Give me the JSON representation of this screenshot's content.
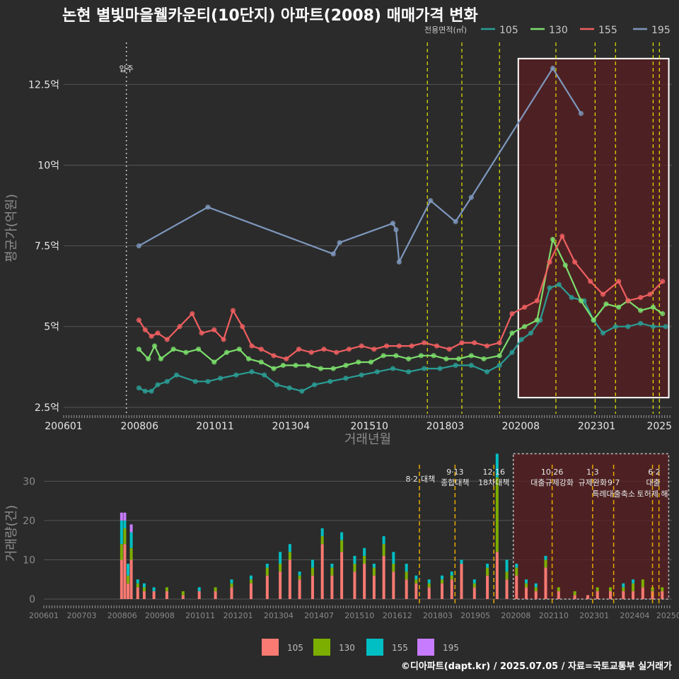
{
  "title": "논현 별빛마을웰카운티(10단지) 아파트(2008) 매매가격 변화",
  "footer": "©디아파트(dapt.kr) / 2025.07.05 / 자료=국토교통부 실거래가",
  "colors": {
    "background": "#2b2b2b",
    "grid": "#555555",
    "area105": "#2a9d95",
    "line130": "#7cde6c",
    "line155": "#f05f60",
    "line195": "#7e97bd",
    "vline": "#e6e600",
    "bar105": "#f87a72",
    "bar130": "#7cae00",
    "bar155": "#00bfc4",
    "bar195": "#c77cff",
    "highlight": "#5a1f22"
  },
  "chart_data": [
    {
      "type": "line",
      "name": "price",
      "title": "논현 별빛마을웰카운티(10단지) 아파트(2008) 매매가격 변화",
      "xlabel": "거래년월",
      "ylabel": "평균가(억원)",
      "legend_title": "전용면적(㎡)",
      "legend_position": "top-right",
      "x_ticks": [
        "200601",
        "200806",
        "201011",
        "201304",
        "201510",
        "201803",
        "202008",
        "202301",
        "2025"
      ],
      "y_ticks": [
        "2.5억",
        "5억",
        "7.5억",
        "10억",
        "12.5억"
      ],
      "ylim": [
        2.3,
        13.8
      ],
      "xlim": [
        2006.0,
        2025.4
      ],
      "move_in": {
        "label": "입주",
        "x": 2008.0
      },
      "policy_lines": [
        2017.6,
        2018.7,
        2019.9,
        2021.7,
        2022.95,
        2023.6,
        2024.8,
        2025.0
      ],
      "highlight_range": {
        "x": [
          2020.5,
          2025.3
        ],
        "y": [
          2.8,
          13.3
        ]
      },
      "series": [
        {
          "name": "105",
          "color": "#2a9d95",
          "x": [
            2008.4,
            2008.6,
            2008.8,
            2009.0,
            2009.3,
            2009.6,
            2010.2,
            2010.6,
            2011.0,
            2011.5,
            2012.0,
            2012.4,
            2012.8,
            2013.2,
            2013.6,
            2014.0,
            2014.5,
            2015.0,
            2015.5,
            2016.0,
            2016.5,
            2017.0,
            2017.5,
            2018.0,
            2018.5,
            2019.0,
            2019.5,
            2019.9,
            2020.3,
            2020.6,
            2020.9,
            2021.2,
            2021.5,
            2021.8,
            2022.2,
            2022.6,
            2022.9,
            2023.2,
            2023.6,
            2024.0,
            2024.4,
            2024.8,
            2025.2
          ],
          "y": [
            3.1,
            3.0,
            3.0,
            3.2,
            3.3,
            3.5,
            3.3,
            3.3,
            3.4,
            3.5,
            3.6,
            3.5,
            3.2,
            3.1,
            3.0,
            3.2,
            3.3,
            3.4,
            3.5,
            3.6,
            3.7,
            3.6,
            3.7,
            3.7,
            3.8,
            3.8,
            3.6,
            3.8,
            4.2,
            4.6,
            4.8,
            5.2,
            6.2,
            6.3,
            5.9,
            5.8,
            5.2,
            4.8,
            5.0,
            5.0,
            5.1,
            5.0,
            5.0
          ]
        },
        {
          "name": "130",
          "color": "#7cde6c",
          "x": [
            2008.4,
            2008.7,
            2008.9,
            2009.1,
            2009.5,
            2009.9,
            2010.3,
            2010.8,
            2011.2,
            2011.6,
            2011.9,
            2012.3,
            2012.7,
            2013.0,
            2013.4,
            2013.8,
            2014.2,
            2014.6,
            2015.0,
            2015.4,
            2015.8,
            2016.2,
            2016.6,
            2017.0,
            2017.4,
            2017.8,
            2018.2,
            2018.6,
            2019.0,
            2019.4,
            2019.9,
            2020.3,
            2020.7,
            2021.1,
            2021.6,
            2022.0,
            2022.5,
            2022.9,
            2023.3,
            2023.7,
            2024.0,
            2024.4,
            2024.8,
            2025.1
          ],
          "y": [
            4.3,
            4.0,
            4.4,
            4.0,
            4.3,
            4.2,
            4.3,
            3.9,
            4.2,
            4.3,
            4.0,
            3.9,
            3.7,
            3.8,
            3.8,
            3.8,
            3.7,
            3.7,
            3.8,
            3.9,
            3.9,
            4.1,
            4.1,
            4.0,
            4.1,
            4.1,
            4.0,
            4.0,
            4.1,
            4.0,
            4.1,
            4.8,
            5.0,
            5.2,
            7.7,
            6.9,
            5.8,
            5.2,
            5.7,
            5.6,
            5.8,
            5.5,
            5.6,
            5.4
          ]
        },
        {
          "name": "155",
          "color": "#f05f60",
          "x": [
            2008.4,
            2008.6,
            2008.8,
            2009.0,
            2009.3,
            2009.7,
            2010.1,
            2010.4,
            2010.8,
            2011.1,
            2011.4,
            2011.7,
            2012.0,
            2012.3,
            2012.7,
            2013.1,
            2013.5,
            2013.9,
            2014.3,
            2014.7,
            2015.1,
            2015.5,
            2015.9,
            2016.3,
            2016.7,
            2017.1,
            2017.5,
            2017.9,
            2018.3,
            2018.7,
            2019.1,
            2019.5,
            2019.9,
            2020.3,
            2020.7,
            2021.1,
            2021.5,
            2021.9,
            2022.3,
            2022.8,
            2023.2,
            2023.7,
            2024.0,
            2024.4,
            2024.7,
            2025.1
          ],
          "y": [
            5.2,
            4.9,
            4.7,
            4.8,
            4.6,
            5.0,
            5.4,
            4.8,
            4.9,
            4.6,
            5.5,
            5.0,
            4.4,
            4.3,
            4.1,
            4.0,
            4.3,
            4.2,
            4.3,
            4.2,
            4.3,
            4.4,
            4.3,
            4.4,
            4.4,
            4.4,
            4.5,
            4.4,
            4.3,
            4.5,
            4.5,
            4.4,
            4.5,
            5.4,
            5.6,
            5.8,
            7.0,
            7.8,
            7.0,
            6.4,
            6.0,
            6.4,
            5.8,
            5.9,
            6.0,
            6.4
          ]
        },
        {
          "name": "195",
          "color": "#7e97bd",
          "x": [
            2008.4,
            2010.6,
            2014.6,
            2014.8,
            2016.5,
            2016.6,
            2016.7,
            2017.7,
            2018.5,
            2019.0,
            2021.6,
            2022.5
          ],
          "y": [
            7.5,
            8.7,
            7.25,
            7.6,
            8.2,
            8.0,
            7.0,
            8.9,
            8.25,
            9.0,
            13.0,
            11.6
          ]
        }
      ]
    },
    {
      "type": "bar",
      "name": "volume",
      "xlabel": "",
      "ylabel": "거래량(건)",
      "y_ticks": [
        "0",
        "10",
        "20",
        "30"
      ],
      "ylim": [
        0,
        36
      ],
      "x_ticks": [
        "200601",
        "200703",
        "200806",
        "200908",
        "201011",
        "201201",
        "201304",
        "201407",
        "201510",
        "201612",
        "201803",
        "201905",
        "202008",
        "202110",
        "202301",
        "202404",
        "20250"
      ],
      "legend": [
        "105",
        "130",
        "155",
        "195"
      ],
      "legend_position": "bottom",
      "policy_lines": [
        2017.6,
        2018.7,
        2019.9,
        2021.7,
        2022.95,
        2023.6,
        2024.8,
        2025.0
      ],
      "highlight_range": {
        "x": [
          2020.5,
          2025.3
        ],
        "y": [
          0,
          37
        ]
      },
      "annotations": [
        {
          "date": "8·2",
          "label": "대책",
          "x": 2017.6
        },
        {
          "date": "9·13",
          "label": "종합대책",
          "x": 2018.7
        },
        {
          "date": "12·16",
          "label": "18차대책",
          "x": 2019.9
        },
        {
          "date": "10·26",
          "label": "대출규제강화",
          "x": 2021.7
        },
        {
          "date": "1·3",
          "label": "규제완화",
          "x": 2022.95
        },
        {
          "date": "9·7",
          "label": "특례대출축소",
          "x": 2023.6
        },
        {
          "date": "",
          "label": "토허제 해",
          "x": 2024.8
        },
        {
          "date": "6·2",
          "label": "대출",
          "x": 2025.0
        }
      ],
      "bars": [
        {
          "x": 2008.4,
          "v": [
            10,
            4,
            6,
            2
          ]
        },
        {
          "x": 2008.5,
          "v": [
            14,
            4,
            2,
            2
          ]
        },
        {
          "x": 2008.6,
          "v": [
            4,
            2,
            3,
            0
          ]
        },
        {
          "x": 2008.7,
          "v": [
            10,
            3,
            4,
            2
          ]
        },
        {
          "x": 2008.9,
          "v": [
            3,
            1,
            1,
            0
          ]
        },
        {
          "x": 2009.1,
          "v": [
            2,
            1,
            1,
            0
          ]
        },
        {
          "x": 2009.4,
          "v": [
            2,
            0,
            1,
            0
          ]
        },
        {
          "x": 2009.8,
          "v": [
            2,
            1,
            0,
            0
          ]
        },
        {
          "x": 2010.3,
          "v": [
            1,
            1,
            0,
            0
          ]
        },
        {
          "x": 2010.8,
          "v": [
            2,
            0,
            1,
            0
          ]
        },
        {
          "x": 2011.3,
          "v": [
            2,
            1,
            0,
            0
          ]
        },
        {
          "x": 2011.8,
          "v": [
            3,
            1,
            1,
            0
          ]
        },
        {
          "x": 2012.4,
          "v": [
            4,
            1,
            1,
            0
          ]
        },
        {
          "x": 2012.9,
          "v": [
            6,
            2,
            1,
            0
          ]
        },
        {
          "x": 2013.3,
          "v": [
            7,
            2,
            3,
            0
          ]
        },
        {
          "x": 2013.6,
          "v": [
            10,
            2,
            2,
            0
          ]
        },
        {
          "x": 2013.9,
          "v": [
            5,
            1,
            1,
            0
          ]
        },
        {
          "x": 2014.3,
          "v": [
            6,
            2,
            2,
            0
          ]
        },
        {
          "x": 2014.6,
          "v": [
            14,
            2,
            2,
            0
          ]
        },
        {
          "x": 2014.9,
          "v": [
            6,
            2,
            1,
            0
          ]
        },
        {
          "x": 2015.2,
          "v": [
            12,
            3,
            2,
            0
          ]
        },
        {
          "x": 2015.6,
          "v": [
            7,
            2,
            2,
            0
          ]
        },
        {
          "x": 2015.9,
          "v": [
            9,
            2,
            2,
            0
          ]
        },
        {
          "x": 2016.2,
          "v": [
            6,
            2,
            1,
            0
          ]
        },
        {
          "x": 2016.5,
          "v": [
            11,
            3,
            2,
            0
          ]
        },
        {
          "x": 2016.8,
          "v": [
            7,
            2,
            3,
            0
          ]
        },
        {
          "x": 2017.2,
          "v": [
            5,
            2,
            2,
            0
          ]
        },
        {
          "x": 2017.5,
          "v": [
            4,
            1,
            1,
            0
          ]
        },
        {
          "x": 2017.9,
          "v": [
            3,
            1,
            1,
            0
          ]
        },
        {
          "x": 2018.3,
          "v": [
            4,
            1,
            1,
            0
          ]
        },
        {
          "x": 2018.6,
          "v": [
            5,
            1,
            1,
            0
          ]
        },
        {
          "x": 2018.9,
          "v": [
            9,
            0,
            1,
            0
          ]
        },
        {
          "x": 2019.3,
          "v": [
            3,
            1,
            1,
            0
          ]
        },
        {
          "x": 2019.7,
          "v": [
            6,
            2,
            1,
            0
          ]
        },
        {
          "x": 2020.0,
          "v": [
            12,
            19,
            6,
            0
          ]
        },
        {
          "x": 2020.3,
          "v": [
            5,
            2,
            3,
            0
          ]
        },
        {
          "x": 2020.6,
          "v": [
            6,
            2,
            1,
            0
          ]
        },
        {
          "x": 2020.9,
          "v": [
            3,
            1,
            1,
            0
          ]
        },
        {
          "x": 2021.2,
          "v": [
            2,
            1,
            1,
            0
          ]
        },
        {
          "x": 2021.5,
          "v": [
            8,
            2,
            1,
            0
          ]
        },
        {
          "x": 2021.9,
          "v": [
            2,
            1,
            0,
            0
          ]
        },
        {
          "x": 2022.4,
          "v": [
            1,
            1,
            0,
            0
          ]
        },
        {
          "x": 2022.8,
          "v": [
            1,
            0,
            0,
            0
          ]
        },
        {
          "x": 2023.1,
          "v": [
            2,
            1,
            0,
            0
          ]
        },
        {
          "x": 2023.5,
          "v": [
            2,
            1,
            0,
            0
          ]
        },
        {
          "x": 2023.9,
          "v": [
            2,
            1,
            1,
            0
          ]
        },
        {
          "x": 2024.2,
          "v": [
            2,
            2,
            1,
            0
          ]
        },
        {
          "x": 2024.5,
          "v": [
            3,
            2,
            0,
            0
          ]
        },
        {
          "x": 2024.8,
          "v": [
            2,
            1,
            0,
            0
          ]
        },
        {
          "x": 2025.1,
          "v": [
            2,
            1,
            0,
            0
          ]
        }
      ]
    }
  ]
}
